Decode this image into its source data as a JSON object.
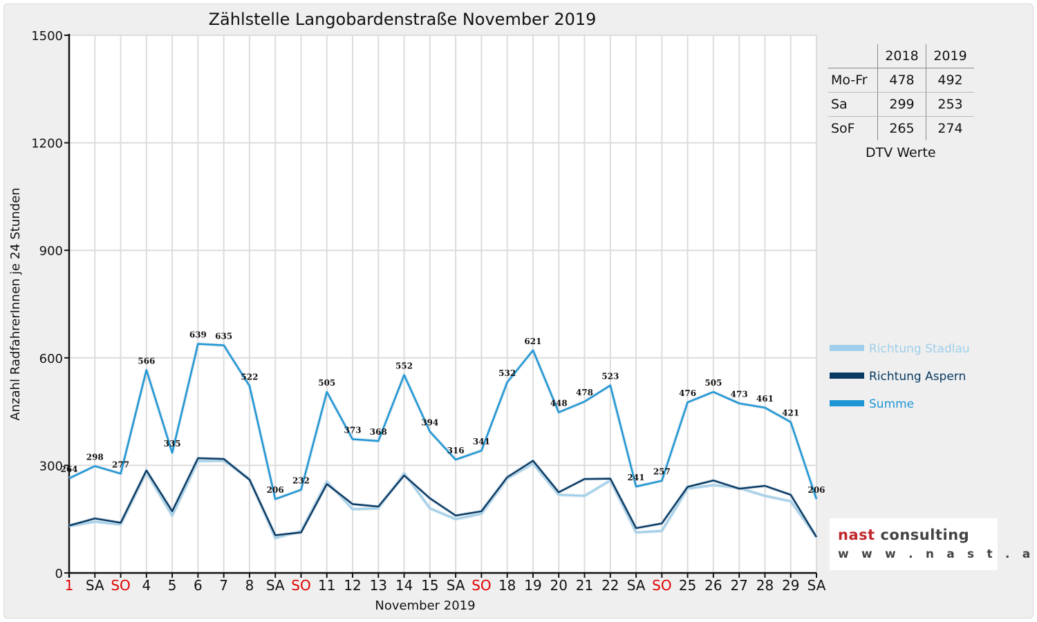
{
  "chart_data": {
    "type": "line",
    "title": "Zählstelle Langobardenstraße November 2019",
    "xlabel": "November 2019",
    "ylabel": "Anzahl RadfahrerInnen je 24 Stunden",
    "ylim": [
      0,
      1500
    ],
    "yticks": [
      0,
      300,
      600,
      900,
      1200,
      1500
    ],
    "grid": true,
    "legend_position": "right",
    "categories": [
      "1",
      "SA",
      "SO",
      "4",
      "5",
      "6",
      "7",
      "8",
      "SA",
      "SO",
      "11",
      "12",
      "13",
      "14",
      "15",
      "SA",
      "SO",
      "18",
      "19",
      "20",
      "21",
      "22",
      "SA",
      "SO",
      "25",
      "26",
      "27",
      "28",
      "29",
      "SA"
    ],
    "red_categories": [
      0,
      2,
      9,
      16,
      23
    ],
    "series": [
      {
        "name": "Richtung Stadlau",
        "color": "#9fcfea",
        "values": [
          130,
          143,
          135,
          280,
          160,
          312,
          313,
          262,
          97,
          117,
          255,
          178,
          180,
          278,
          180,
          150,
          165,
          263,
          305,
          218,
          215,
          258,
          113,
          117,
          235,
          245,
          237,
          215,
          200,
          100
        ],
        "labels": false
      },
      {
        "name": "Richtung Aspern",
        "color": "#0a3a63",
        "values": [
          132,
          152,
          140,
          286,
          172,
          320,
          318,
          260,
          105,
          113,
          248,
          192,
          185,
          272,
          208,
          160,
          172,
          267,
          313,
          225,
          262,
          263,
          125,
          138,
          240,
          258,
          235,
          243,
          218,
          100
        ],
        "labels": false
      },
      {
        "name": "Summe",
        "color": "#1e96d4",
        "values": [
          264,
          298,
          277,
          566,
          335,
          639,
          635,
          522,
          206,
          232,
          505,
          373,
          368,
          552,
          394,
          316,
          341,
          532,
          621,
          448,
          478,
          523,
          241,
          257,
          476,
          505,
          473,
          461,
          421,
          206
        ],
        "labels": true
      }
    ]
  },
  "dtv": {
    "header": [
      "",
      "2018",
      "2019"
    ],
    "rows": [
      {
        "label": "Mo-Fr",
        "v2018": "478",
        "v2019": "492"
      },
      {
        "label": "Sa",
        "v2018": "299",
        "v2019": "253"
      },
      {
        "label": "SoF",
        "v2018": "265",
        "v2019": "274"
      }
    ],
    "caption": "DTV Werte"
  },
  "logo": {
    "name_part1": "nast",
    "name_part2": " consulting",
    "url": "w w w . n a s t . a t",
    "color_red": "#c0272d",
    "color_gray": "#444444"
  }
}
